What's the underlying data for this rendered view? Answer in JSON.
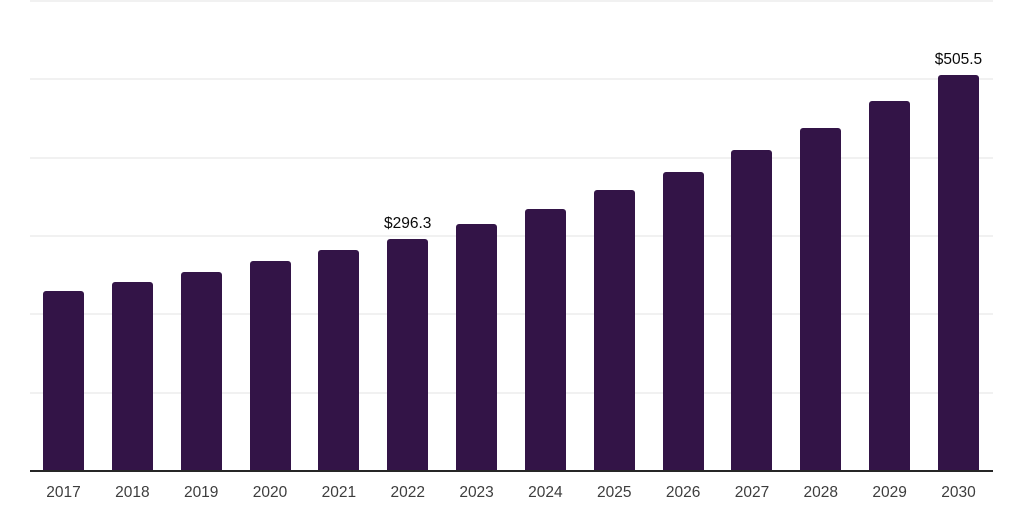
{
  "chart_data": {
    "type": "bar",
    "title": "",
    "xlabel": "",
    "ylabel": "",
    "categories": [
      "2017",
      "2018",
      "2019",
      "2020",
      "2021",
      "2022",
      "2023",
      "2024",
      "2025",
      "2026",
      "2027",
      "2028",
      "2029",
      "2030"
    ],
    "values": [
      229.4,
      241.2,
      254.4,
      267.6,
      281.5,
      296.3,
      315.4,
      334.5,
      358.8,
      382.1,
      409.8,
      438.4,
      472.5,
      505.5
    ],
    "point_labels": [
      "",
      "",
      "",
      "",
      "",
      "$296.3",
      "",
      "",
      "",
      "",
      "",
      "",
      "",
      "$505.5"
    ],
    "ylim": [
      0,
      600
    ],
    "gridline_interval": 100,
    "grid": true,
    "y_tick_labels_visible": false,
    "legend_position": "none",
    "colors": {
      "bar": "#331447",
      "gridline": "#f1f1f1",
      "axis_line": "#262626",
      "point_label_text": "#0a0a0a",
      "x_tick_text": "#3d3d3d",
      "background": "#ffffff"
    }
  }
}
